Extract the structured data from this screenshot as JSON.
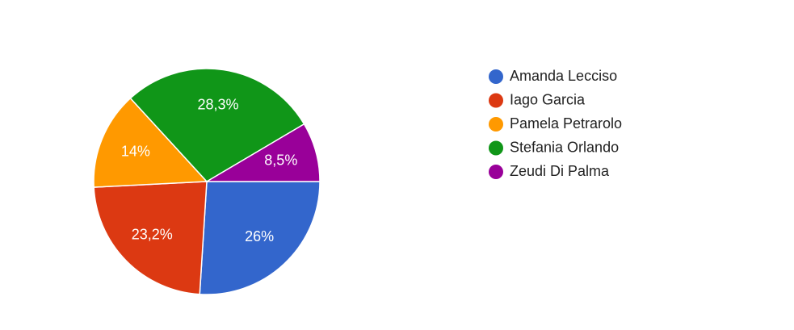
{
  "chart_data": {
    "type": "pie",
    "categories": [
      "Amanda Lecciso",
      "Iago Garcia",
      "Pamela Petrarolo",
      "Stefania Orlando",
      "Zeudi Di Palma"
    ],
    "values": [
      26,
      23.2,
      14,
      28.3,
      8.5
    ],
    "value_labels": [
      "26%",
      "23,2%",
      "14%",
      "28,3%",
      "8,5%"
    ],
    "colors": [
      "#3366cc",
      "#dc3912",
      "#ff9900",
      "#109618",
      "#990099"
    ],
    "legend": "right"
  }
}
